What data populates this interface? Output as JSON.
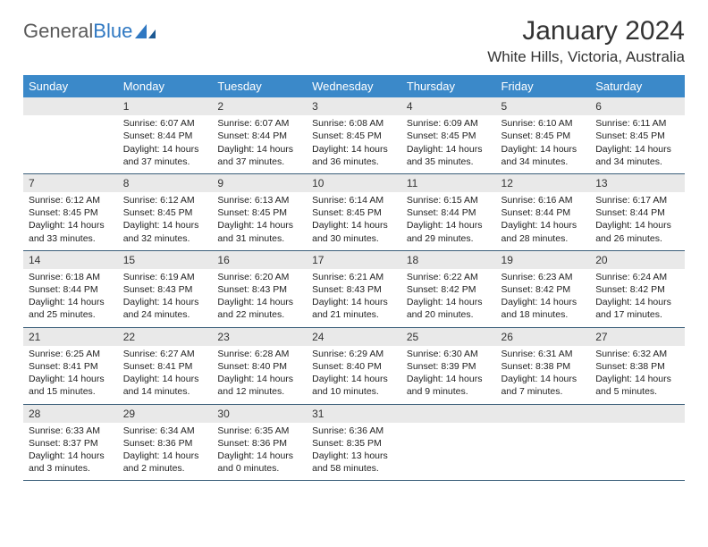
{
  "brand": {
    "part1": "General",
    "part2": "Blue"
  },
  "title": "January 2024",
  "subtitle": "White Hills, Victoria, Australia",
  "colors": {
    "header_bg": "#3b89c9",
    "header_text": "#ffffff",
    "daynum_bg": "#e9e9e9",
    "row_border": "#3b5f7a",
    "brand_gray": "#5a5a5a",
    "brand_blue": "#2f78c2"
  },
  "weekdays": [
    "Sunday",
    "Monday",
    "Tuesday",
    "Wednesday",
    "Thursday",
    "Friday",
    "Saturday"
  ],
  "weeks": [
    [
      {
        "day": "",
        "sunrise": "",
        "sunset": "",
        "daylight": ""
      },
      {
        "day": "1",
        "sunrise": "Sunrise: 6:07 AM",
        "sunset": "Sunset: 8:44 PM",
        "daylight": "Daylight: 14 hours and 37 minutes."
      },
      {
        "day": "2",
        "sunrise": "Sunrise: 6:07 AM",
        "sunset": "Sunset: 8:44 PM",
        "daylight": "Daylight: 14 hours and 37 minutes."
      },
      {
        "day": "3",
        "sunrise": "Sunrise: 6:08 AM",
        "sunset": "Sunset: 8:45 PM",
        "daylight": "Daylight: 14 hours and 36 minutes."
      },
      {
        "day": "4",
        "sunrise": "Sunrise: 6:09 AM",
        "sunset": "Sunset: 8:45 PM",
        "daylight": "Daylight: 14 hours and 35 minutes."
      },
      {
        "day": "5",
        "sunrise": "Sunrise: 6:10 AM",
        "sunset": "Sunset: 8:45 PM",
        "daylight": "Daylight: 14 hours and 34 minutes."
      },
      {
        "day": "6",
        "sunrise": "Sunrise: 6:11 AM",
        "sunset": "Sunset: 8:45 PM",
        "daylight": "Daylight: 14 hours and 34 minutes."
      }
    ],
    [
      {
        "day": "7",
        "sunrise": "Sunrise: 6:12 AM",
        "sunset": "Sunset: 8:45 PM",
        "daylight": "Daylight: 14 hours and 33 minutes."
      },
      {
        "day": "8",
        "sunrise": "Sunrise: 6:12 AM",
        "sunset": "Sunset: 8:45 PM",
        "daylight": "Daylight: 14 hours and 32 minutes."
      },
      {
        "day": "9",
        "sunrise": "Sunrise: 6:13 AM",
        "sunset": "Sunset: 8:45 PM",
        "daylight": "Daylight: 14 hours and 31 minutes."
      },
      {
        "day": "10",
        "sunrise": "Sunrise: 6:14 AM",
        "sunset": "Sunset: 8:45 PM",
        "daylight": "Daylight: 14 hours and 30 minutes."
      },
      {
        "day": "11",
        "sunrise": "Sunrise: 6:15 AM",
        "sunset": "Sunset: 8:44 PM",
        "daylight": "Daylight: 14 hours and 29 minutes."
      },
      {
        "day": "12",
        "sunrise": "Sunrise: 6:16 AM",
        "sunset": "Sunset: 8:44 PM",
        "daylight": "Daylight: 14 hours and 28 minutes."
      },
      {
        "day": "13",
        "sunrise": "Sunrise: 6:17 AM",
        "sunset": "Sunset: 8:44 PM",
        "daylight": "Daylight: 14 hours and 26 minutes."
      }
    ],
    [
      {
        "day": "14",
        "sunrise": "Sunrise: 6:18 AM",
        "sunset": "Sunset: 8:44 PM",
        "daylight": "Daylight: 14 hours and 25 minutes."
      },
      {
        "day": "15",
        "sunrise": "Sunrise: 6:19 AM",
        "sunset": "Sunset: 8:43 PM",
        "daylight": "Daylight: 14 hours and 24 minutes."
      },
      {
        "day": "16",
        "sunrise": "Sunrise: 6:20 AM",
        "sunset": "Sunset: 8:43 PM",
        "daylight": "Daylight: 14 hours and 22 minutes."
      },
      {
        "day": "17",
        "sunrise": "Sunrise: 6:21 AM",
        "sunset": "Sunset: 8:43 PM",
        "daylight": "Daylight: 14 hours and 21 minutes."
      },
      {
        "day": "18",
        "sunrise": "Sunrise: 6:22 AM",
        "sunset": "Sunset: 8:42 PM",
        "daylight": "Daylight: 14 hours and 20 minutes."
      },
      {
        "day": "19",
        "sunrise": "Sunrise: 6:23 AM",
        "sunset": "Sunset: 8:42 PM",
        "daylight": "Daylight: 14 hours and 18 minutes."
      },
      {
        "day": "20",
        "sunrise": "Sunrise: 6:24 AM",
        "sunset": "Sunset: 8:42 PM",
        "daylight": "Daylight: 14 hours and 17 minutes."
      }
    ],
    [
      {
        "day": "21",
        "sunrise": "Sunrise: 6:25 AM",
        "sunset": "Sunset: 8:41 PM",
        "daylight": "Daylight: 14 hours and 15 minutes."
      },
      {
        "day": "22",
        "sunrise": "Sunrise: 6:27 AM",
        "sunset": "Sunset: 8:41 PM",
        "daylight": "Daylight: 14 hours and 14 minutes."
      },
      {
        "day": "23",
        "sunrise": "Sunrise: 6:28 AM",
        "sunset": "Sunset: 8:40 PM",
        "daylight": "Daylight: 14 hours and 12 minutes."
      },
      {
        "day": "24",
        "sunrise": "Sunrise: 6:29 AM",
        "sunset": "Sunset: 8:40 PM",
        "daylight": "Daylight: 14 hours and 10 minutes."
      },
      {
        "day": "25",
        "sunrise": "Sunrise: 6:30 AM",
        "sunset": "Sunset: 8:39 PM",
        "daylight": "Daylight: 14 hours and 9 minutes."
      },
      {
        "day": "26",
        "sunrise": "Sunrise: 6:31 AM",
        "sunset": "Sunset: 8:38 PM",
        "daylight": "Daylight: 14 hours and 7 minutes."
      },
      {
        "day": "27",
        "sunrise": "Sunrise: 6:32 AM",
        "sunset": "Sunset: 8:38 PM",
        "daylight": "Daylight: 14 hours and 5 minutes."
      }
    ],
    [
      {
        "day": "28",
        "sunrise": "Sunrise: 6:33 AM",
        "sunset": "Sunset: 8:37 PM",
        "daylight": "Daylight: 14 hours and 3 minutes."
      },
      {
        "day": "29",
        "sunrise": "Sunrise: 6:34 AM",
        "sunset": "Sunset: 8:36 PM",
        "daylight": "Daylight: 14 hours and 2 minutes."
      },
      {
        "day": "30",
        "sunrise": "Sunrise: 6:35 AM",
        "sunset": "Sunset: 8:36 PM",
        "daylight": "Daylight: 14 hours and 0 minutes."
      },
      {
        "day": "31",
        "sunrise": "Sunrise: 6:36 AM",
        "sunset": "Sunset: 8:35 PM",
        "daylight": "Daylight: 13 hours and 58 minutes."
      },
      {
        "day": "",
        "sunrise": "",
        "sunset": "",
        "daylight": ""
      },
      {
        "day": "",
        "sunrise": "",
        "sunset": "",
        "daylight": ""
      },
      {
        "day": "",
        "sunrise": "",
        "sunset": "",
        "daylight": ""
      }
    ]
  ]
}
